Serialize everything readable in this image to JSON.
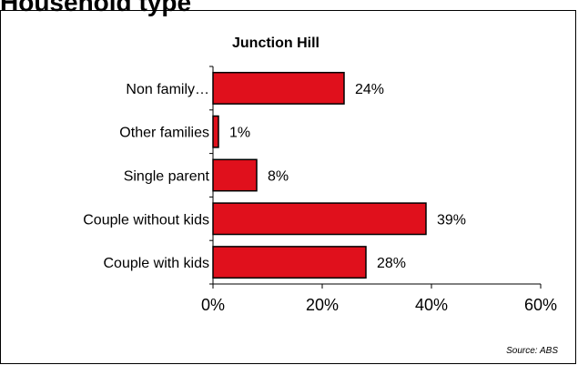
{
  "page_title": "Household type",
  "source_note": "Source: ABS",
  "chart_data": {
    "type": "bar",
    "orientation": "horizontal",
    "title": "Junction Hill",
    "categories": [
      "Non family…",
      "Other families",
      "Single parent",
      "Couple without kids",
      "Couple with kids"
    ],
    "values": [
      24,
      1,
      8,
      39,
      28
    ],
    "value_labels": [
      "24%",
      "1%",
      "8%",
      "39%",
      "28%"
    ],
    "xlim": [
      0,
      60
    ],
    "xticks": [
      0,
      20,
      40,
      60
    ],
    "xtick_labels": [
      "0%",
      "20%",
      "40%",
      "60%"
    ],
    "bar_color": "#e0101c",
    "grid": false,
    "legend": "none"
  }
}
